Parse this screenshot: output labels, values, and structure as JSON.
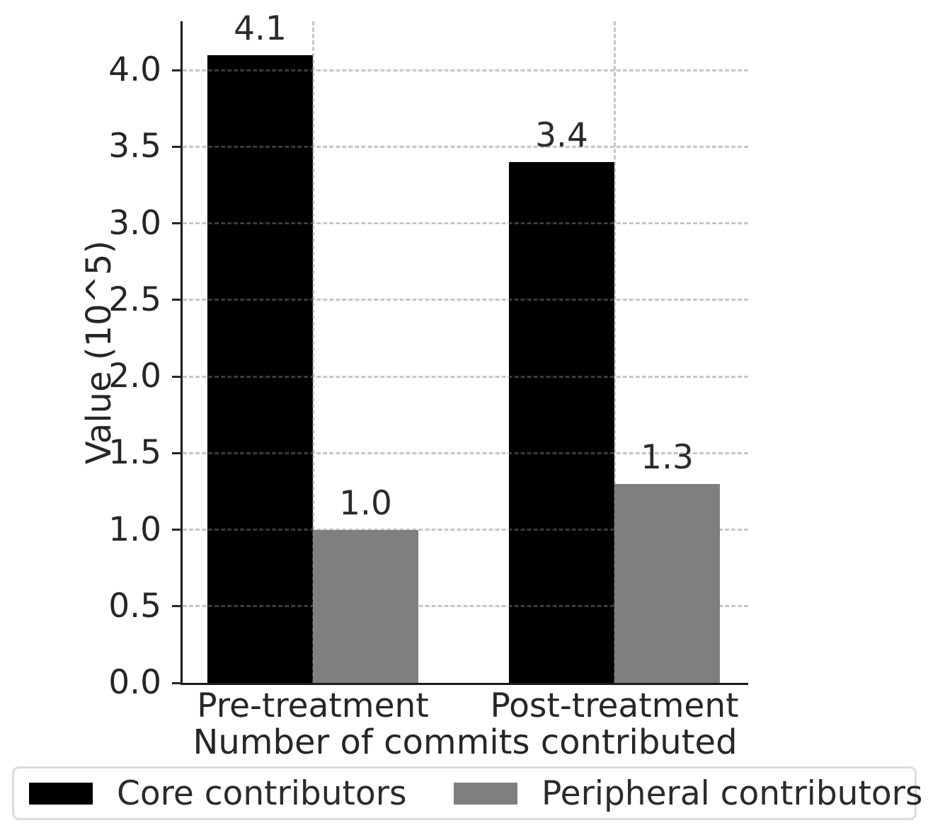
{
  "chart_data": {
    "type": "bar",
    "title": "",
    "xlabel": "Number of commits contributed",
    "ylabel": "Value (10^5)",
    "categories": [
      "Pre-treatment",
      "Post-treatment"
    ],
    "series": [
      {
        "name": "Core contributors",
        "color": "#000000",
        "values": [
          4.1,
          3.4
        ],
        "labels": [
          "4.1",
          "3.4"
        ]
      },
      {
        "name": "Peripheral contributors",
        "color": "#7f7f7f",
        "values": [
          1.0,
          1.3
        ],
        "labels": [
          "1.0",
          "1.3"
        ]
      }
    ],
    "ylim": [
      0.0,
      4.32
    ],
    "yticks": [
      "0.0",
      "0.5",
      "1.0",
      "1.5",
      "2.0",
      "2.5",
      "3.0",
      "3.5",
      "4.0"
    ],
    "grid": "dashed horizontal lines at y ticks and dashed vertical lines at category centers, drawn over bars",
    "legend_position": "bottom",
    "spines": "left and bottom only"
  },
  "colors": {
    "background": "#ffffff",
    "text": "#262626",
    "spine": "#1a1a1a",
    "gridline": "#808080",
    "legend_border": "#dcdcdc"
  }
}
